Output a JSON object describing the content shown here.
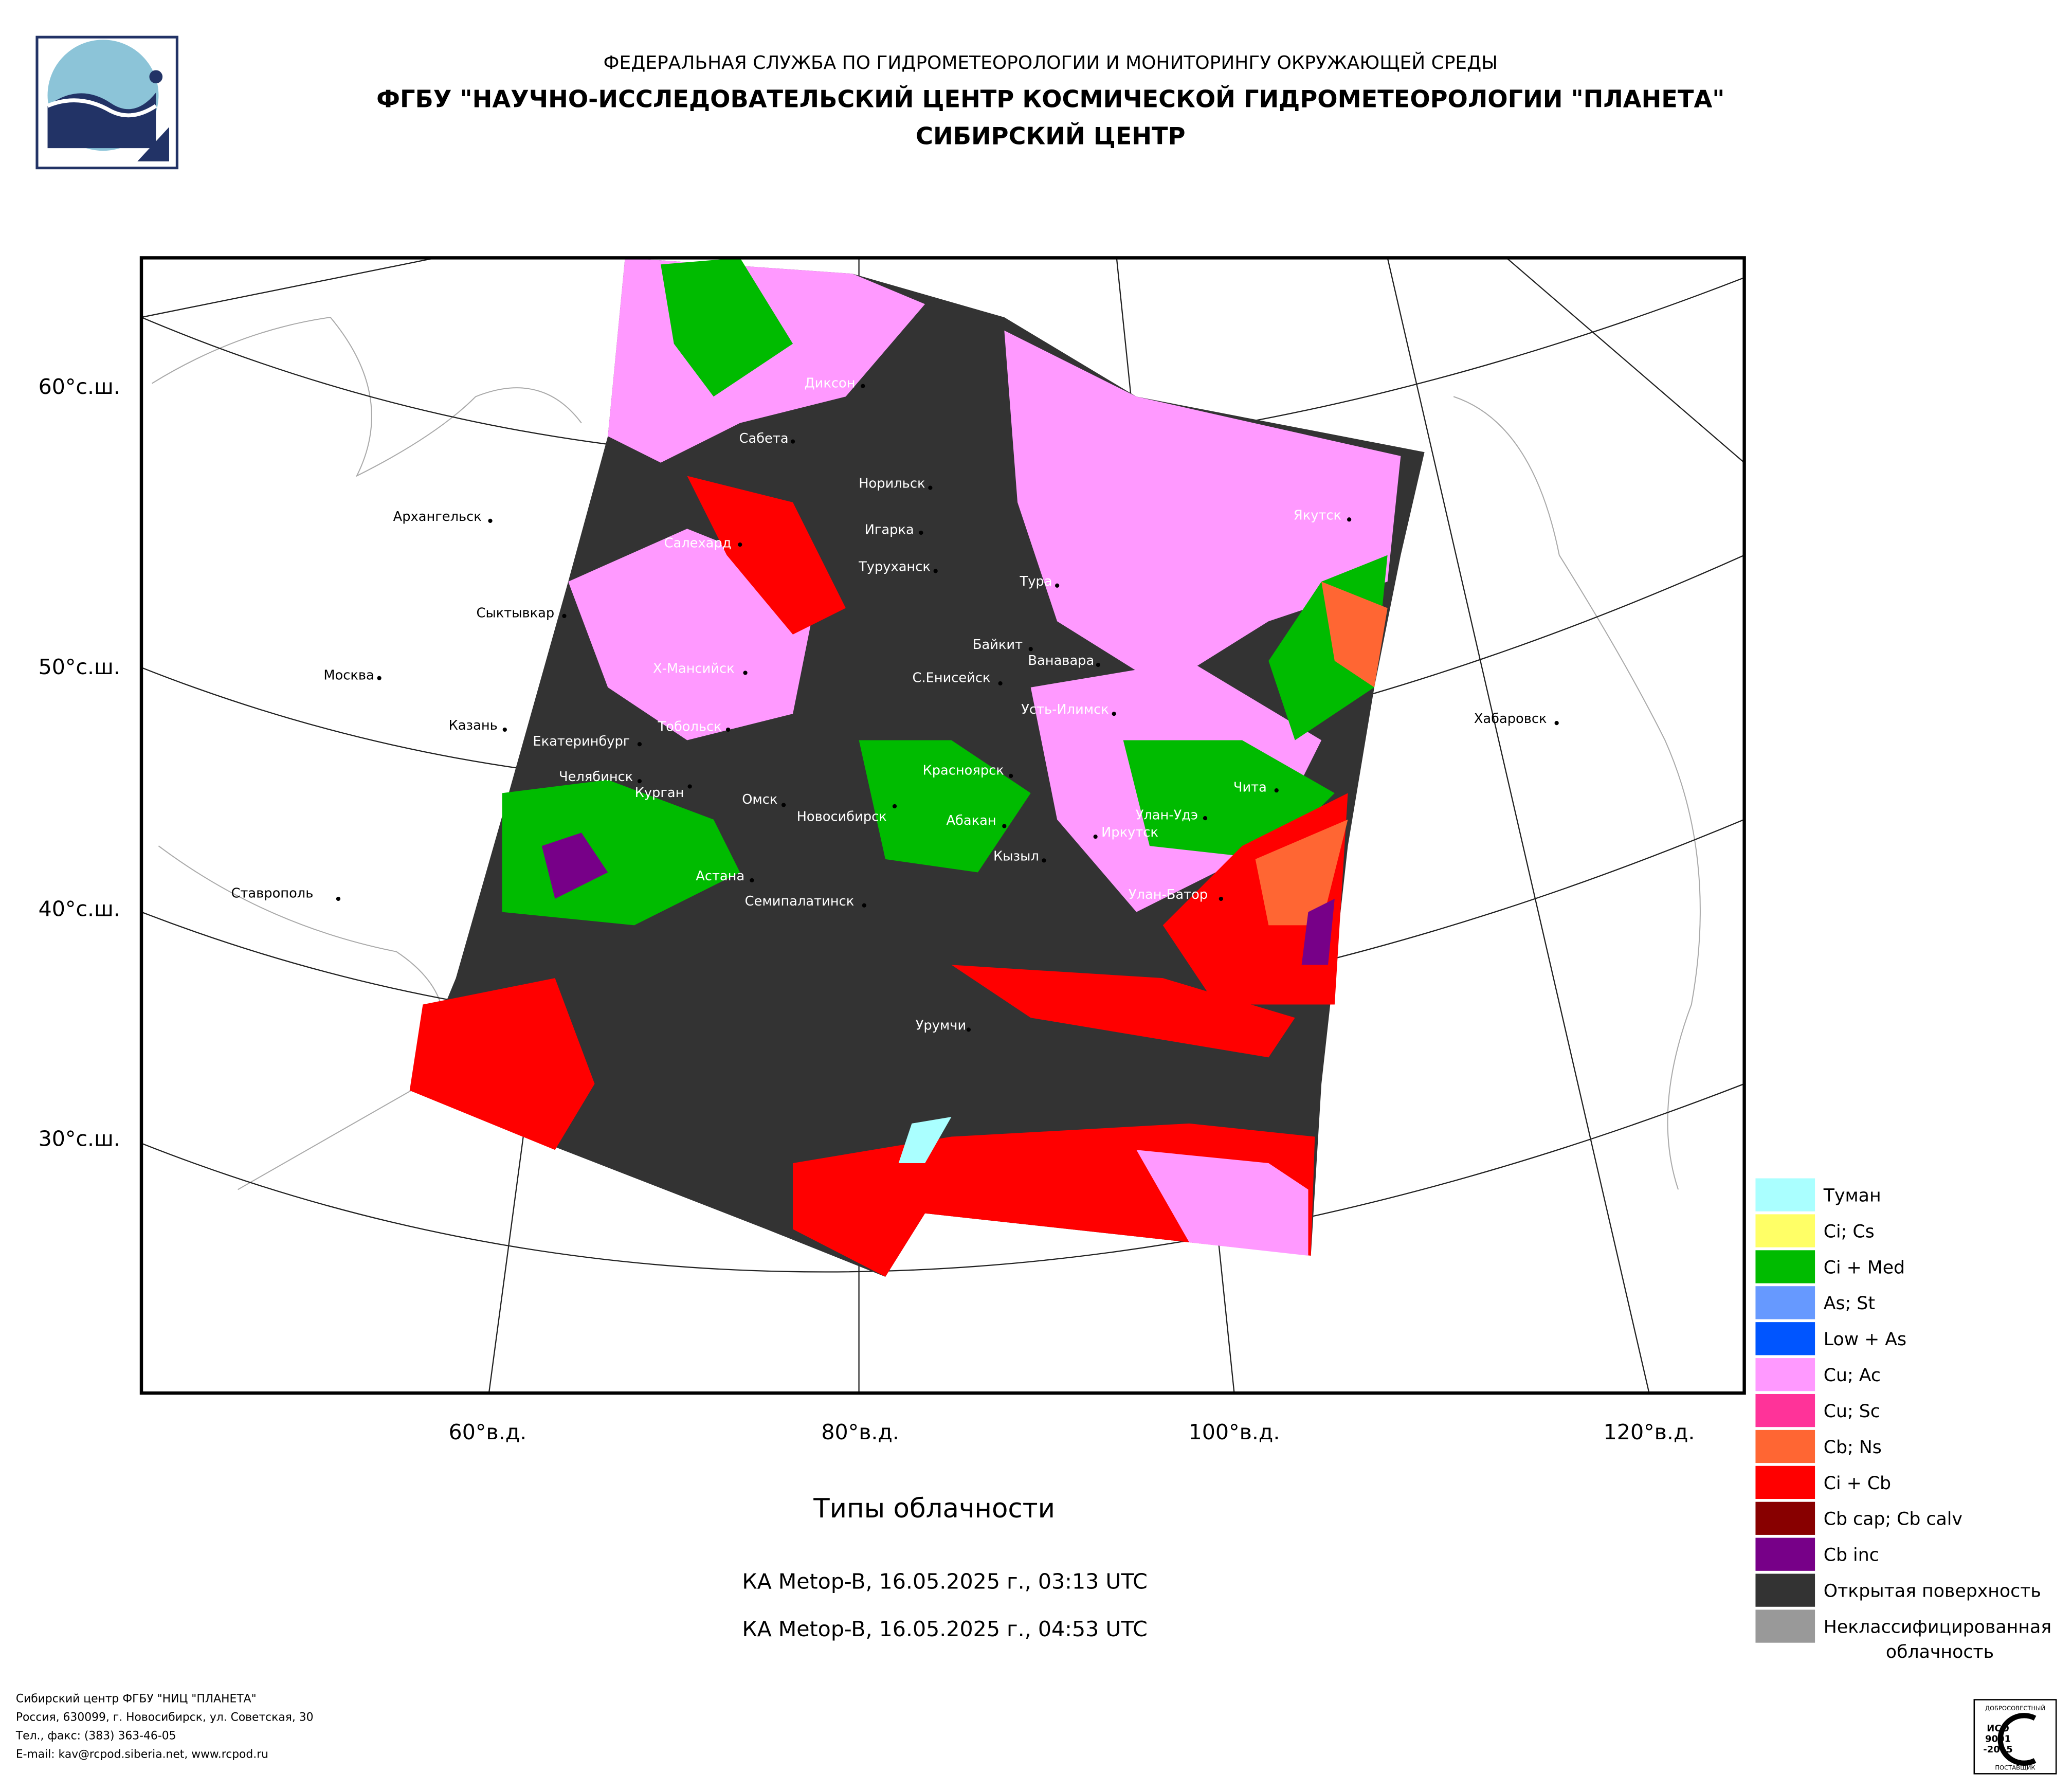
{
  "header": {
    "line1": "ФЕДЕРАЛЬНАЯ СЛУЖБА ПО ГИДРОМЕТЕОРОЛОГИИ И МОНИТОРИНГУ ОКРУЖАЮЩЕЙ СРЕДЫ",
    "line2": "ФГБУ \"НАУЧНО-ИССЛЕДОВАТЕЛЬСКИЙ ЦЕНТР КОСМИЧЕСКОЙ ГИДРОМЕТЕОРОЛОГИИ \"ПЛАНЕТА\"",
    "line3": "СИБИРСКИЙ ЦЕНТР"
  },
  "map": {
    "lat_labels": [
      "60°с.ш.",
      "50°с.ш.",
      "40°с.ш.",
      "30°с.ш."
    ],
    "lon_labels": [
      "60°в.д.",
      "80°в.д.",
      "100°в.д.",
      "120°в.д."
    ],
    "cities": [
      "Диксон",
      "Сабета",
      "Норильск",
      "Игарка",
      "Туруханск",
      "Салехард",
      "Архангельск",
      "Сыктывкар",
      "Москва",
      "Казань",
      "Х-Мансийск",
      "Екатеринбург",
      "Тобольск",
      "Челябинск",
      "Курган",
      "Омск",
      "Новосибирск",
      "Астана",
      "Семипалатинск",
      "Красноярск",
      "Абакан",
      "Кызыл",
      "Иркутск",
      "Улан-Удэ",
      "Чита",
      "Улан-Батор",
      "Тура",
      "Байкит",
      "Ванавара",
      "С.Енисейск",
      "Усть-Илимск",
      "Якутск",
      "Хабаровск",
      "Ставрополь",
      "Урумчи"
    ]
  },
  "title": "Типы облачности",
  "subtitles": [
    "КА Metop-B, 16.05.2025 г., 03:13 UTC",
    "КА Metop-B, 16.05.2025 г., 04:53 UTC"
  ],
  "legend": [
    {
      "label_lines": [
        "Туман"
      ],
      "color": "#aaffff"
    },
    {
      "label_lines": [
        "Ci; Cs"
      ],
      "color": "#ffff66"
    },
    {
      "label_lines": [
        "Ci + Med"
      ],
      "color": "#00bb00"
    },
    {
      "label_lines": [
        "As; St"
      ],
      "color": "#6699ff"
    },
    {
      "label_lines": [
        "Low + As"
      ],
      "color": "#0055ff"
    },
    {
      "label_lines": [
        "Cu; Ac"
      ],
      "color": "#ff99ff"
    },
    {
      "label_lines": [
        "Cu; Sc"
      ],
      "color": "#ff3399"
    },
    {
      "label_lines": [
        "Cb; Ns"
      ],
      "color": "#ff6633"
    },
    {
      "label_lines": [
        "Ci + Cb"
      ],
      "color": "#ff0000"
    },
    {
      "label_lines": [
        "Cb cap; Cb calv"
      ],
      "color": "#880000"
    },
    {
      "label_lines": [
        "Cb inc"
      ],
      "color": "#770088"
    },
    {
      "label_lines": [
        "Открытая поверхность"
      ],
      "color": "#333333"
    },
    {
      "label_lines": [
        "Неклассифицированная",
        "облачность"
      ],
      "color": "#999999"
    }
  ],
  "footer": [
    "Сибирский центр ФГБУ \"НИЦ \"ПЛАНЕТА\"",
    "Россия, 630099, г. Новосибирск, ул. Советская, 30",
    "Тел., факс: (383) 363-46-05",
    "E-mail: kav@rcpod.siberia.net, www.rcpod.ru"
  ],
  "iso_logo": {
    "top": "ДОБРОСОВЕСТНЫЙ",
    "line1": "ИСО",
    "line2": "9001",
    "line3": "-2015",
    "bottom": "ПОСТАВЩИК"
  }
}
